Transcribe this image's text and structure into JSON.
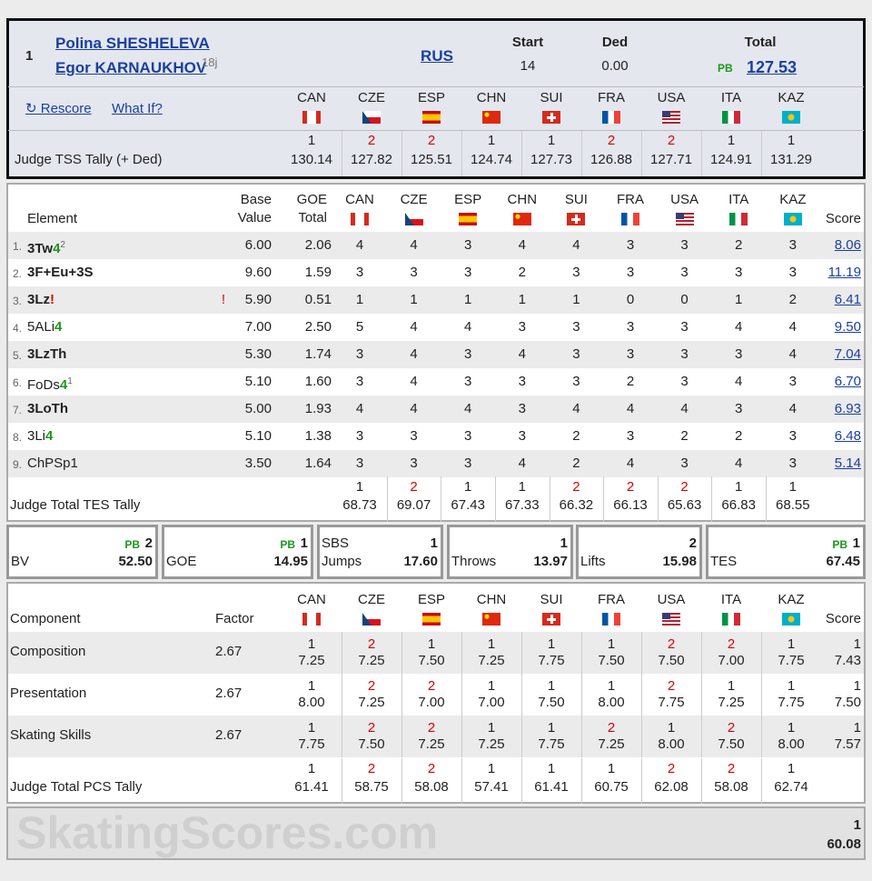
{
  "header": {
    "rank": "1",
    "names": [
      "Polina SHESHELEVA",
      "Egor KARNAUKHOV"
    ],
    "age": "18j",
    "nation": "RUS",
    "start_label": "Start",
    "start": "14",
    "ded_label": "Ded",
    "ded": "0.00",
    "total_label": "Total",
    "pb": "PB",
    "total": "127.53"
  },
  "links": {
    "rescore": "↻ Rescore",
    "what_if": "What If?"
  },
  "judges": [
    "CAN",
    "CZE",
    "ESP",
    "CHN",
    "SUI",
    "FRA",
    "USA",
    "ITA",
    "KAZ"
  ],
  "tss_tally": {
    "label": "Judge TSS Tally (+ Ded)",
    "ranks": [
      "1",
      "2",
      "2",
      "1",
      "1",
      "2",
      "2",
      "1",
      "1"
    ],
    "values": [
      "130.14",
      "127.82",
      "125.51",
      "124.74",
      "127.73",
      "126.88",
      "127.71",
      "124.91",
      "131.29"
    ]
  },
  "elements": {
    "headers": {
      "element": "Element",
      "base": "Base Value",
      "goe": "GOE Total",
      "score": "Score"
    },
    "rows": [
      {
        "no": "1.",
        "code": "3Tw",
        "level": "4",
        "sup": "2",
        "bold": true,
        "base": "6.00",
        "goe": "2.06",
        "marks": [
          4,
          4,
          3,
          4,
          4,
          3,
          3,
          2,
          3
        ],
        "score": "8.06"
      },
      {
        "no": "2.",
        "code": "3F+Eu+3S",
        "bold": true,
        "base": "9.60",
        "goe": "1.59",
        "marks": [
          3,
          3,
          3,
          2,
          3,
          3,
          3,
          3,
          3
        ],
        "score": "11.19"
      },
      {
        "no": "3.",
        "code": "3Lz",
        "edge": "!",
        "note": "!",
        "bold": true,
        "base": "5.90",
        "goe": "0.51",
        "marks": [
          1,
          1,
          1,
          1,
          1,
          0,
          0,
          1,
          2
        ],
        "score": "6.41"
      },
      {
        "no": "4.",
        "code": "5ALi",
        "level": "4",
        "bold": false,
        "base": "7.00",
        "goe": "2.50",
        "marks": [
          5,
          4,
          4,
          3,
          3,
          3,
          3,
          4,
          4
        ],
        "score": "9.50"
      },
      {
        "no": "5.",
        "code": "3LzTh",
        "bold": true,
        "base": "5.30",
        "goe": "1.74",
        "marks": [
          3,
          4,
          3,
          4,
          3,
          3,
          3,
          3,
          4
        ],
        "score": "7.04"
      },
      {
        "no": "6.",
        "code": "FoDs",
        "level": "4",
        "sup": "1",
        "bold": false,
        "base": "5.10",
        "goe": "1.60",
        "marks": [
          3,
          4,
          3,
          3,
          3,
          2,
          3,
          4,
          3
        ],
        "score": "6.70"
      },
      {
        "no": "7.",
        "code": "3LoTh",
        "bold": true,
        "base": "5.00",
        "goe": "1.93",
        "marks": [
          4,
          4,
          4,
          3,
          4,
          4,
          4,
          3,
          4
        ],
        "score": "6.93"
      },
      {
        "no": "8.",
        "code": "3Li",
        "level": "4",
        "bold": false,
        "base": "5.10",
        "goe": "1.38",
        "marks": [
          3,
          3,
          3,
          3,
          2,
          3,
          2,
          2,
          3
        ],
        "score": "6.48"
      },
      {
        "no": "9.",
        "code": "ChPSp1",
        "bold": false,
        "base": "3.50",
        "goe": "1.64",
        "marks": [
          3,
          3,
          3,
          4,
          2,
          4,
          3,
          4,
          3
        ],
        "score": "5.14"
      }
    ]
  },
  "tes_tally": {
    "label": "Judge Total TES Tally",
    "ranks": [
      "1",
      "2",
      "1",
      "1",
      "2",
      "2",
      "2",
      "1",
      "1"
    ],
    "values": [
      "68.73",
      "69.07",
      "67.43",
      "67.33",
      "66.32",
      "66.13",
      "65.63",
      "66.83",
      "68.55"
    ]
  },
  "summary": [
    {
      "pb": "PB",
      "rank": "2",
      "label": "BV",
      "value": "52.50"
    },
    {
      "pb": "PB",
      "rank": "1",
      "label": "GOE",
      "value": "14.95"
    },
    {
      "top_label": "SBS",
      "rank": "1",
      "label": "Jumps",
      "value": "17.60"
    },
    {
      "rank": "1",
      "label": "Throws",
      "value": "13.97"
    },
    {
      "rank": "2",
      "label": "Lifts",
      "value": "15.98"
    },
    {
      "pb": "PB",
      "rank": "1",
      "label": "TES",
      "value": "67.45"
    }
  ],
  "components": {
    "headers": {
      "component": "Component",
      "factor": "Factor",
      "score": "Score"
    },
    "rows": [
      {
        "name": "Composition",
        "factor": "2.67",
        "ranks": [
          "1",
          "2",
          "1",
          "1",
          "1",
          "1",
          "2",
          "2",
          "1"
        ],
        "values": [
          "7.25",
          "7.25",
          "7.50",
          "7.25",
          "7.75",
          "7.50",
          "7.50",
          "7.00",
          "7.75"
        ],
        "score_rank": "1",
        "score": "7.43"
      },
      {
        "name": "Presentation",
        "factor": "2.67",
        "ranks": [
          "1",
          "2",
          "2",
          "1",
          "1",
          "1",
          "2",
          "1",
          "1"
        ],
        "values": [
          "8.00",
          "7.25",
          "7.00",
          "7.00",
          "7.50",
          "8.00",
          "7.75",
          "7.25",
          "7.75"
        ],
        "score_rank": "1",
        "score": "7.50"
      },
      {
        "name": "Skating Skills",
        "factor": "2.67",
        "ranks": [
          "1",
          "2",
          "2",
          "1",
          "1",
          "2",
          "1",
          "2",
          "1"
        ],
        "values": [
          "7.75",
          "7.50",
          "7.25",
          "7.25",
          "7.75",
          "7.25",
          "8.00",
          "7.50",
          "8.00"
        ],
        "score_rank": "1",
        "score": "7.57"
      }
    ]
  },
  "pcs_tally": {
    "label": "Judge Total PCS Tally",
    "ranks": [
      "1",
      "2",
      "2",
      "1",
      "1",
      "1",
      "2",
      "2",
      "1"
    ],
    "values": [
      "61.41",
      "58.75",
      "58.08",
      "57.41",
      "61.41",
      "60.75",
      "62.08",
      "58.08",
      "62.74"
    ]
  },
  "footer": {
    "watermark": "SkatingScores.com",
    "rank": "1",
    "value": "60.08"
  }
}
